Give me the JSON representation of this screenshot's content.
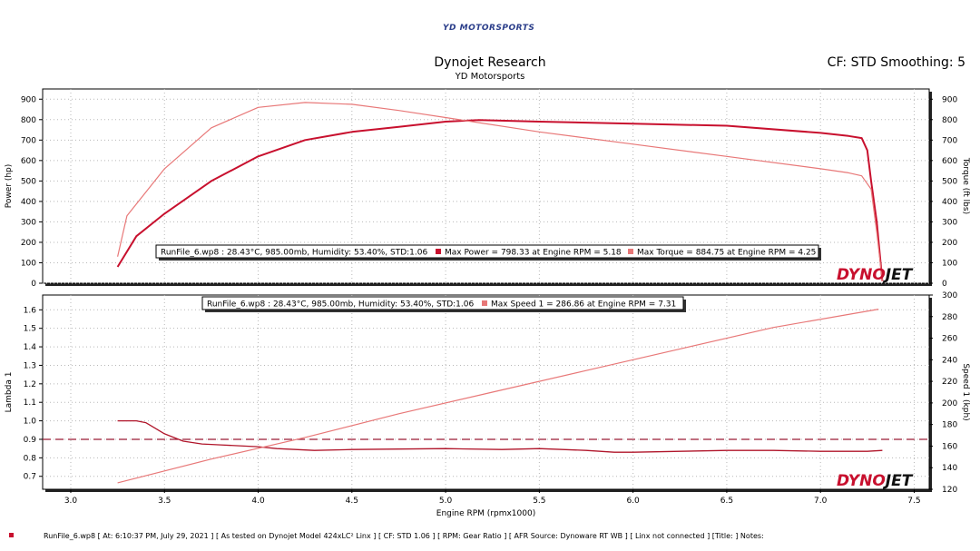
{
  "header": {
    "logo_text": "YD MOTORSPORTS",
    "title": "Dynojet Research",
    "subtitle": "YD Motorsports",
    "cf_text": "CF: STD Smoothing: 5"
  },
  "footer": {
    "text": "RunFile_6.wp8 [ At: 6:10:37 PM, July 29, 2021 ] [ As tested on Dynojet Model 424xLC² Linx ] [ CF: STD 1.06 ] [ RPM: Gear Ratio ] [ AFR Source: Dynoware RT WB ] [ Linx not connected ] [Title: ]   Notes:"
  },
  "brand": {
    "red": "#c8102e",
    "light_red": "#e87878",
    "dark_red": "#b0152a",
    "dash": "#9a1a35"
  },
  "chart_data": [
    {
      "type": "line",
      "panel": "top",
      "ylabel": "Power (hp)",
      "y2label": "Torque (ft lbs)",
      "x_ticks": [
        "3.0",
        "3.5",
        "4.0",
        "4.5",
        "5.0",
        "5.5",
        "6.0",
        "6.5",
        "7.0",
        "7.5"
      ],
      "xlim": [
        2.85,
        7.58
      ],
      "ylim": [
        0,
        950
      ],
      "y_ticks": [
        0,
        100,
        200,
        300,
        400,
        500,
        600,
        700,
        800,
        900
      ],
      "y2lim": [
        0,
        950
      ],
      "y2_ticks": [
        0,
        100,
        200,
        300,
        400,
        500,
        600,
        700,
        800,
        900
      ],
      "grid": true,
      "legend": {
        "runfile": "RunFile_6.wp8 : 28.43°C, 985.00mb, Humidity: 53.40%, STD:1.06",
        "entries": [
          {
            "label": "Max Power = 798.33 at Engine RPM = 5.18",
            "color": "#c8102e"
          },
          {
            "label": "Max Torque = 884.75 at Engine RPM = 4.25",
            "color": "#e87878"
          }
        ]
      },
      "brand_text": "DYNOJET",
      "series": [
        {
          "name": "Power",
          "axis": "left",
          "color": "#c8102e",
          "width": 2,
          "x": [
            3.25,
            3.35,
            3.5,
            3.75,
            4.0,
            4.25,
            4.5,
            4.75,
            5.0,
            5.18,
            5.5,
            6.0,
            6.5,
            7.0,
            7.15,
            7.22,
            7.25,
            7.27,
            7.3,
            7.33
          ],
          "y": [
            80,
            230,
            340,
            500,
            620,
            700,
            740,
            765,
            790,
            798,
            790,
            780,
            770,
            735,
            720,
            710,
            650,
            500,
            300,
            10
          ]
        },
        {
          "name": "Torque",
          "axis": "right",
          "color": "#e87878",
          "width": 1.2,
          "x": [
            3.25,
            3.3,
            3.5,
            3.75,
            4.0,
            4.25,
            4.5,
            4.75,
            5.0,
            5.5,
            6.0,
            6.5,
            7.0,
            7.15,
            7.22,
            7.27,
            7.3,
            7.33
          ],
          "y": [
            130,
            330,
            560,
            760,
            860,
            884,
            875,
            845,
            810,
            740,
            680,
            620,
            560,
            540,
            525,
            460,
            250,
            10
          ]
        }
      ]
    },
    {
      "type": "line",
      "panel": "bottom",
      "xlabel": "Engine RPM (rpmx1000)",
      "ylabel": "Lambda 1",
      "y2label": "Speed 1 (kph)",
      "x_ticks": [
        "3.0",
        "3.5",
        "4.0",
        "4.5",
        "5.0",
        "5.5",
        "6.0",
        "6.5",
        "7.0",
        "7.5"
      ],
      "xlim": [
        2.85,
        7.58
      ],
      "ylim": [
        0.63,
        1.68
      ],
      "y_ticks": [
        "0.7",
        "0.8",
        "0.9",
        "1.0",
        "1.1",
        "1.2",
        "1.3",
        "1.4",
        "1.5",
        "1.6"
      ],
      "y2lim": [
        120,
        300
      ],
      "y2_ticks": [
        "120",
        "140",
        "160",
        "180",
        "200",
        "220",
        "240",
        "260",
        "280",
        "300"
      ],
      "grid": true,
      "reference_line": {
        "value": 0.9,
        "axis": "left",
        "color": "#9a1a35",
        "style": "dashed"
      },
      "legend": {
        "runfile": "RunFile_6.wp8 : 28.43°C, 985.00mb, Humidity: 53.40%, STD:1.06",
        "entries": [
          {
            "label": "Max Speed 1 = 286.86 at Engine RPM = 7.31",
            "color": "#e87878"
          }
        ]
      },
      "brand_text": "DYNOJET",
      "series": [
        {
          "name": "Lambda 1",
          "axis": "left",
          "color": "#b0152a",
          "width": 1.3,
          "x": [
            3.25,
            3.35,
            3.4,
            3.45,
            3.5,
            3.6,
            3.7,
            3.8,
            3.9,
            4.0,
            4.1,
            4.2,
            4.3,
            4.5,
            5.0,
            5.3,
            5.5,
            5.75,
            5.9,
            6.0,
            6.25,
            6.5,
            6.75,
            7.0,
            7.25,
            7.33
          ],
          "y": [
            1.0,
            1.0,
            0.99,
            0.96,
            0.93,
            0.89,
            0.875,
            0.87,
            0.865,
            0.86,
            0.85,
            0.845,
            0.84,
            0.845,
            0.85,
            0.845,
            0.85,
            0.84,
            0.83,
            0.83,
            0.835,
            0.84,
            0.84,
            0.835,
            0.835,
            0.84
          ]
        },
        {
          "name": "Speed 1",
          "axis": "right",
          "color": "#e87878",
          "width": 1.2,
          "x": [
            3.25,
            3.75,
            4.25,
            4.75,
            5.25,
            5.75,
            6.25,
            6.75,
            7.31
          ],
          "y": [
            126,
            148,
            168,
            190,
            210,
            230,
            250,
            270,
            286.86
          ]
        }
      ]
    }
  ]
}
